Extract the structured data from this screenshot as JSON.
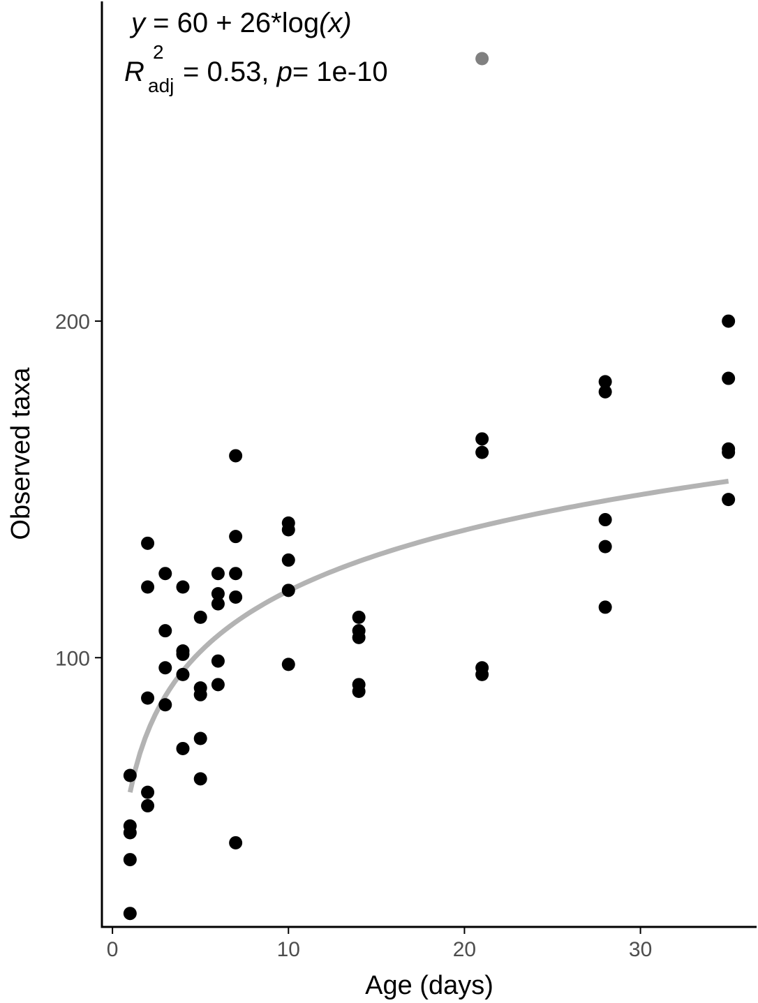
{
  "chart_data": {
    "type": "scatter",
    "xlabel": "Age (days)",
    "ylabel": "Observed taxa",
    "x_ticks": [
      0,
      10,
      20,
      30
    ],
    "y_ticks": [
      100,
      200
    ],
    "x_tick_labels": [
      "0",
      "10",
      "20",
      "30"
    ],
    "y_tick_labels": [
      "100",
      "200"
    ],
    "xlim": [
      -0.6,
      36.6
    ],
    "ylim": [
      20,
      295
    ],
    "grid": false,
    "annotation": {
      "equation_y": "y",
      "equation_rest": " = 60 + 26*log",
      "equation_x": "(x)",
      "r_symbol": "R",
      "r_superscript": "2",
      "r_subscript": "adj",
      "r_value": " = 0.53, ",
      "p_symbol": "p",
      "p_value": "= 1e-10"
    },
    "points": [
      {
        "x": 1,
        "y": 65
      },
      {
        "x": 1,
        "y": 50
      },
      {
        "x": 1,
        "y": 48
      },
      {
        "x": 1,
        "y": 40
      },
      {
        "x": 1,
        "y": 24
      },
      {
        "x": 2,
        "y": 134
      },
      {
        "x": 2,
        "y": 121
      },
      {
        "x": 2,
        "y": 88
      },
      {
        "x": 2,
        "y": 60
      },
      {
        "x": 2,
        "y": 56
      },
      {
        "x": 3,
        "y": 125
      },
      {
        "x": 3,
        "y": 108
      },
      {
        "x": 3,
        "y": 97
      },
      {
        "x": 3,
        "y": 86
      },
      {
        "x": 4,
        "y": 121
      },
      {
        "x": 4,
        "y": 102
      },
      {
        "x": 4,
        "y": 101
      },
      {
        "x": 4,
        "y": 95
      },
      {
        "x": 4,
        "y": 73
      },
      {
        "x": 5,
        "y": 112
      },
      {
        "x": 5,
        "y": 91
      },
      {
        "x": 5,
        "y": 89
      },
      {
        "x": 5,
        "y": 76
      },
      {
        "x": 5,
        "y": 64
      },
      {
        "x": 6,
        "y": 125
      },
      {
        "x": 6,
        "y": 119
      },
      {
        "x": 6,
        "y": 116
      },
      {
        "x": 6,
        "y": 99
      },
      {
        "x": 6,
        "y": 92
      },
      {
        "x": 7,
        "y": 160
      },
      {
        "x": 7,
        "y": 136
      },
      {
        "x": 7,
        "y": 125
      },
      {
        "x": 7,
        "y": 118
      },
      {
        "x": 7,
        "y": 45
      },
      {
        "x": 10,
        "y": 140
      },
      {
        "x": 10,
        "y": 138
      },
      {
        "x": 10,
        "y": 129
      },
      {
        "x": 10,
        "y": 120
      },
      {
        "x": 10,
        "y": 98
      },
      {
        "x": 14,
        "y": 112
      },
      {
        "x": 14,
        "y": 108
      },
      {
        "x": 14,
        "y": 106
      },
      {
        "x": 14,
        "y": 92
      },
      {
        "x": 14,
        "y": 90
      },
      {
        "x": 21,
        "y": 165
      },
      {
        "x": 21,
        "y": 161
      },
      {
        "x": 21,
        "y": 97
      },
      {
        "x": 21,
        "y": 95
      },
      {
        "x": 28,
        "y": 182
      },
      {
        "x": 28,
        "y": 179
      },
      {
        "x": 28,
        "y": 141
      },
      {
        "x": 28,
        "y": 133
      },
      {
        "x": 28,
        "y": 115
      },
      {
        "x": 35,
        "y": 200
      },
      {
        "x": 35,
        "y": 183
      },
      {
        "x": 35,
        "y": 162
      },
      {
        "x": 35,
        "y": 161
      },
      {
        "x": 35,
        "y": 147
      }
    ],
    "outliers": [
      {
        "x": 21,
        "y": 278
      }
    ],
    "fit": {
      "intercept": 60,
      "slope": 26,
      "x_range": [
        1,
        35
      ]
    },
    "colors": {
      "points": "#000000",
      "outlier": "#808080",
      "fit_line": "#b3b3b3",
      "axis": "#000000",
      "tick_label": "#4d4d4d"
    }
  }
}
